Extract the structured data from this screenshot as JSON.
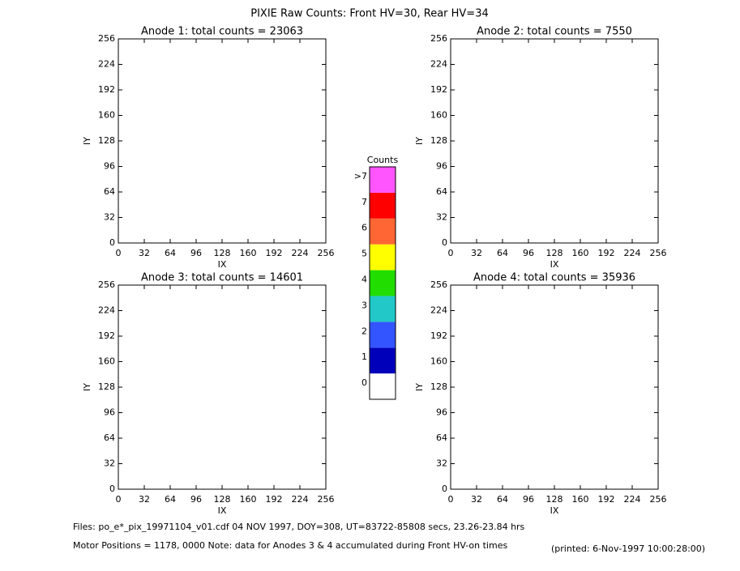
{
  "title": "PIXIE Raw Counts:  Front HV=30, Rear HV=34",
  "chart_data": [
    {
      "type": "heatmap",
      "title": "Anode 1: total counts = 23063",
      "xlabel": "IX",
      "ylabel": "IY",
      "xlim": [
        0,
        256
      ],
      "ylim": [
        0,
        256
      ],
      "xticks": [
        0,
        32,
        64,
        96,
        128,
        160,
        192,
        224,
        256
      ],
      "yticks": [
        0,
        32,
        64,
        96,
        128,
        160,
        192,
        224,
        256
      ]
    },
    {
      "type": "heatmap",
      "title": "Anode 2: total counts = 7550",
      "xlabel": "IX",
      "ylabel": "IY",
      "xlim": [
        0,
        256
      ],
      "ylim": [
        0,
        256
      ],
      "xticks": [
        0,
        32,
        64,
        96,
        128,
        160,
        192,
        224,
        256
      ],
      "yticks": [
        0,
        32,
        64,
        96,
        128,
        160,
        192,
        224,
        256
      ]
    },
    {
      "type": "heatmap",
      "title": "Anode 3: total counts = 14601",
      "xlabel": "IX",
      "ylabel": "IY",
      "xlim": [
        0,
        256
      ],
      "ylim": [
        0,
        256
      ],
      "xticks": [
        0,
        32,
        64,
        96,
        128,
        160,
        192,
        224,
        256
      ],
      "yticks": [
        0,
        32,
        64,
        96,
        128,
        160,
        192,
        224,
        256
      ]
    },
    {
      "type": "heatmap",
      "title": "Anode 4: total counts = 35936",
      "xlabel": "IX",
      "ylabel": "IY",
      "xlim": [
        0,
        256
      ],
      "ylim": [
        0,
        256
      ],
      "xticks": [
        0,
        32,
        64,
        96,
        128,
        160,
        192,
        224,
        256
      ],
      "yticks": [
        0,
        32,
        64,
        96,
        128,
        160,
        192,
        224,
        256
      ]
    }
  ],
  "colorbar": {
    "title": "Counts",
    "labels": [
      "0",
      "1",
      "2",
      "3",
      "4",
      "5",
      "6",
      "7",
      ">7"
    ],
    "colors": [
      "#ffffff",
      "#0000bb",
      "#3355ff",
      "#22c8c8",
      "#22dd00",
      "#ffff00",
      "#ff6633",
      "#ff0000",
      "#ff55ff"
    ]
  },
  "footer": {
    "files": "Files: po_e*_pix_19971104_v01.cdf     04 NOV 1997, DOY=308, UT=83722-85808 secs, 23.26-23.84 hrs",
    "motor": "Motor Positions = 1178, 0000    Note: data for Anodes 3 & 4 accumulated during Front HV-on times",
    "printed": "(printed:  6-Nov-1997 10:00:28:00)"
  }
}
